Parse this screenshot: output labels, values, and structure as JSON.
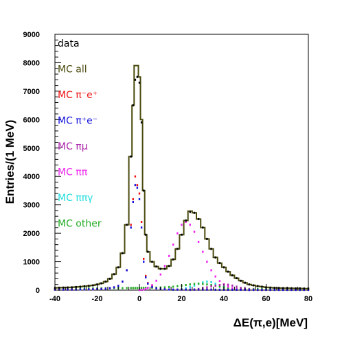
{
  "chart_data": {
    "type": "line",
    "xlabel": "ΔE(π,e)[MeV]",
    "ylabel": "Entries/(1 MeV)",
    "xlim": [
      -40,
      80
    ],
    "ylim": [
      0,
      9000
    ],
    "x_ticks": [
      "-40",
      "-20",
      "0",
      "20",
      "40",
      "60",
      "80"
    ],
    "y_ticks": [
      "0",
      "1000",
      "2000",
      "3000",
      "4000",
      "5000",
      "6000",
      "7000",
      "8000",
      "9000"
    ],
    "legend_placement": "top-left",
    "grid": false,
    "x": [
      -40,
      -38,
      -36,
      -34,
      -32,
      -30,
      -28,
      -26,
      -24,
      -22,
      -20,
      -18,
      -16,
      -14,
      -12,
      -10,
      -8,
      -6,
      -4,
      -3,
      -2,
      -1,
      0,
      1,
      2,
      3,
      4,
      6,
      8,
      10,
      12,
      14,
      16,
      18,
      20,
      22,
      24,
      26,
      28,
      30,
      32,
      34,
      36,
      38,
      40,
      42,
      44,
      46,
      48,
      50,
      52,
      54,
      56,
      58,
      60,
      62,
      64,
      66,
      68,
      70,
      72,
      74,
      76,
      78,
      80
    ],
    "series": [
      {
        "name": "data",
        "color": "#000000",
        "style": "points",
        "values": [
          80,
          85,
          90,
          95,
          100,
          110,
          120,
          135,
          150,
          170,
          200,
          240,
          300,
          400,
          560,
          800,
          1300,
          2300,
          4700,
          6500,
          7400,
          7500,
          7300,
          5900,
          3500,
          1950,
          1350,
          1000,
          830,
          750,
          750,
          850,
          1080,
          1450,
          1950,
          2450,
          2750,
          2720,
          2500,
          2200,
          1800,
          1450,
          1150,
          950,
          800,
          650,
          520,
          420,
          330,
          260,
          200,
          170,
          140,
          120,
          100,
          90,
          80,
          75,
          70,
          70,
          65,
          60,
          60,
          55,
          55
        ]
      },
      {
        "name": "MC all",
        "color": "#4a4a0e",
        "style": "hist",
        "values": [
          80,
          85,
          90,
          95,
          100,
          110,
          120,
          135,
          150,
          170,
          200,
          240,
          300,
          400,
          560,
          800,
          1300,
          2300,
          4700,
          6500,
          7900,
          7900,
          7500,
          6000,
          3500,
          1950,
          1350,
          1000,
          830,
          750,
          750,
          850,
          1080,
          1450,
          1950,
          2450,
          2780,
          2720,
          2500,
          2200,
          1800,
          1450,
          1150,
          950,
          800,
          650,
          520,
          420,
          330,
          260,
          200,
          170,
          140,
          120,
          100,
          90,
          80,
          75,
          70,
          70,
          65,
          60,
          60,
          55,
          55
        ]
      },
      {
        "name": "MC π⁻e⁺",
        "color": "#ee1111",
        "style": "points",
        "values": [
          20,
          20,
          20,
          20,
          20,
          20,
          25,
          25,
          30,
          30,
          35,
          40,
          50,
          70,
          100,
          150,
          300,
          700,
          2300,
          3200,
          4000,
          3700,
          3400,
          2400,
          1100,
          500,
          250,
          120,
          60,
          40,
          30,
          25,
          20,
          20,
          20,
          20,
          20,
          20,
          20,
          20,
          20,
          20,
          15,
          15,
          15,
          15,
          15,
          15,
          15,
          15,
          10,
          10,
          10,
          10,
          10,
          10,
          10,
          10,
          10,
          10,
          10,
          10,
          10,
          10,
          10
        ]
      },
      {
        "name": "MC π⁺e⁻",
        "color": "#1111dd",
        "style": "points",
        "values": [
          20,
          20,
          20,
          20,
          20,
          20,
          25,
          25,
          30,
          30,
          35,
          40,
          50,
          70,
          100,
          150,
          300,
          700,
          2200,
          3100,
          3700,
          3600,
          3200,
          2200,
          1000,
          450,
          230,
          110,
          60,
          40,
          30,
          25,
          20,
          20,
          20,
          20,
          20,
          20,
          20,
          20,
          20,
          20,
          15,
          15,
          15,
          15,
          15,
          15,
          15,
          15,
          10,
          10,
          10,
          10,
          10,
          10,
          10,
          10,
          10,
          10,
          10,
          10,
          10,
          10,
          10
        ]
      },
      {
        "name": "MC πμ",
        "color": "#aa22aa",
        "style": "points",
        "values": [
          0,
          0,
          0,
          0,
          0,
          0,
          0,
          0,
          0,
          0,
          0,
          0,
          0,
          0,
          0,
          0,
          0,
          0,
          0,
          0,
          0,
          0,
          0,
          0,
          0,
          0,
          0,
          0,
          0,
          0,
          0,
          0,
          0,
          0,
          0,
          0,
          10,
          20,
          40,
          70,
          100,
          130,
          160,
          180,
          200,
          190,
          160,
          120,
          80,
          50,
          30,
          20,
          10,
          5,
          0,
          0,
          0,
          0,
          0,
          0,
          0,
          0,
          0,
          0,
          0
        ]
      },
      {
        "name": "MC ππ",
        "color": "#ee22ee",
        "style": "points",
        "values": [
          0,
          0,
          0,
          0,
          0,
          0,
          0,
          0,
          0,
          0,
          0,
          0,
          0,
          0,
          0,
          0,
          0,
          0,
          0,
          0,
          0,
          0,
          5,
          10,
          20,
          40,
          80,
          180,
          330,
          550,
          850,
          1200,
          1600,
          2000,
          2300,
          2400,
          2300,
          2050,
          1700,
          1350,
          1000,
          700,
          480,
          320,
          200,
          120,
          70,
          40,
          20,
          10,
          5,
          0,
          0,
          0,
          0,
          0,
          0,
          0,
          0,
          0,
          0,
          0,
          0,
          0,
          0
        ]
      },
      {
        "name": "MC ππγ",
        "color": "#22dddd",
        "style": "points",
        "values": [
          0,
          0,
          0,
          0,
          0,
          0,
          0,
          0,
          0,
          0,
          0,
          0,
          0,
          0,
          0,
          0,
          0,
          0,
          0,
          0,
          0,
          0,
          0,
          0,
          0,
          0,
          0,
          0,
          0,
          0,
          0,
          0,
          10,
          20,
          40,
          70,
          110,
          160,
          220,
          270,
          300,
          280,
          230,
          170,
          110,
          70,
          40,
          20,
          10,
          0,
          0,
          0,
          0,
          0,
          0,
          0,
          0,
          0,
          0,
          0,
          0,
          0,
          0,
          0,
          0
        ]
      },
      {
        "name": "MC other",
        "color": "#22aa22",
        "style": "points",
        "values": [
          40,
          40,
          45,
          45,
          50,
          50,
          55,
          55,
          60,
          60,
          60,
          65,
          65,
          70,
          70,
          70,
          70,
          75,
          75,
          75,
          75,
          75,
          75,
          80,
          80,
          80,
          80,
          85,
          90,
          95,
          100,
          110,
          120,
          140,
          160,
          180,
          200,
          220,
          230,
          220,
          200,
          180,
          150,
          120,
          90,
          70,
          60,
          50,
          45,
          40,
          40,
          40,
          40,
          40,
          40,
          40,
          40,
          40,
          40,
          40,
          40,
          40,
          40,
          40,
          40
        ]
      }
    ]
  }
}
